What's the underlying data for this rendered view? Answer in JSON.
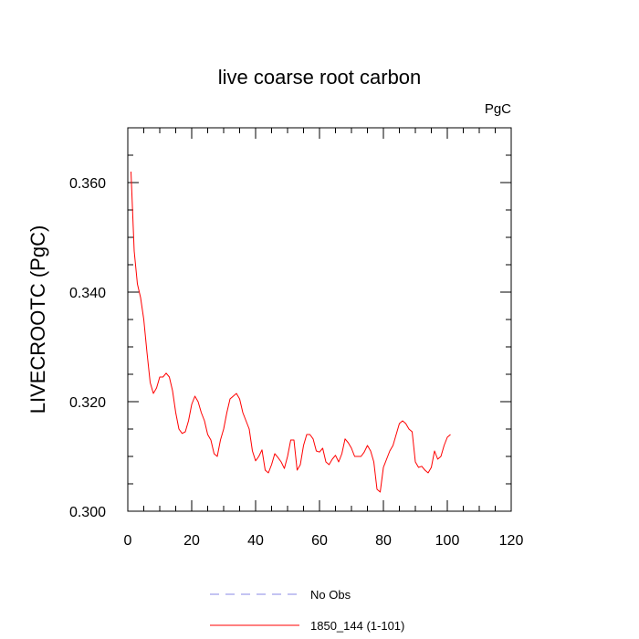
{
  "chart_data": {
    "type": "line",
    "title": "live coarse root carbon",
    "units": "PgC",
    "ylabel": "LIVECROOTC  (PgC)",
    "xlabel": "",
    "xlim": [
      0,
      120
    ],
    "ylim": [
      0.3,
      0.37
    ],
    "x_ticks": [
      0,
      20,
      40,
      60,
      80,
      100,
      120
    ],
    "x_tick_labels": [
      "0",
      "20",
      "40",
      "60",
      "80",
      "100",
      "120"
    ],
    "y_ticks": [
      0.3,
      0.32,
      0.34,
      0.36
    ],
    "y_tick_labels": [
      "0.300",
      "0.320",
      "0.340",
      "0.360"
    ],
    "grid": false,
    "legend_position": "bottom",
    "series": [
      {
        "name": "No Obs",
        "color": "#8a8ae6",
        "dash": "dashed",
        "x": [],
        "values": []
      },
      {
        "name": "1850_144 (1-101)",
        "color": "#ff0000",
        "dash": "solid",
        "x": [
          1,
          2,
          3,
          4,
          5,
          6,
          7,
          8,
          9,
          10,
          11,
          12,
          13,
          14,
          15,
          16,
          17,
          18,
          19,
          20,
          21,
          22,
          23,
          24,
          25,
          26,
          27,
          28,
          29,
          30,
          31,
          32,
          33,
          34,
          35,
          36,
          37,
          38,
          39,
          40,
          41,
          42,
          43,
          44,
          45,
          46,
          47,
          48,
          49,
          50,
          51,
          52,
          53,
          54,
          55,
          56,
          57,
          58,
          59,
          60,
          61,
          62,
          63,
          64,
          65,
          66,
          67,
          68,
          69,
          70,
          71,
          72,
          73,
          74,
          75,
          76,
          77,
          78,
          79,
          80,
          81,
          82,
          83,
          84,
          85,
          86,
          87,
          88,
          89,
          90,
          91,
          92,
          93,
          94,
          95,
          96,
          97,
          98,
          99,
          100,
          101
        ],
        "values": [
          0.362,
          0.3475,
          0.3415,
          0.339,
          0.335,
          0.329,
          0.3235,
          0.3215,
          0.3225,
          0.3245,
          0.3245,
          0.3252,
          0.3245,
          0.322,
          0.318,
          0.315,
          0.3142,
          0.3145,
          0.3165,
          0.3195,
          0.321,
          0.32,
          0.318,
          0.3165,
          0.314,
          0.313,
          0.3105,
          0.31,
          0.313,
          0.315,
          0.318,
          0.3205,
          0.321,
          0.3215,
          0.3205,
          0.318,
          0.3165,
          0.315,
          0.311,
          0.3092,
          0.31,
          0.3112,
          0.3075,
          0.307,
          0.3085,
          0.3105,
          0.3098,
          0.309,
          0.3078,
          0.31,
          0.313,
          0.313,
          0.3075,
          0.3085,
          0.312,
          0.314,
          0.314,
          0.3132,
          0.311,
          0.3108,
          0.3115,
          0.309,
          0.3085,
          0.3095,
          0.3102,
          0.309,
          0.3105,
          0.3132,
          0.3125,
          0.3115,
          0.31,
          0.31,
          0.31,
          0.3108,
          0.312,
          0.311,
          0.309,
          0.304,
          0.3035,
          0.308,
          0.3095,
          0.311,
          0.312,
          0.314,
          0.316,
          0.3165,
          0.316,
          0.315,
          0.3145,
          0.309,
          0.308,
          0.3082,
          0.3075,
          0.307,
          0.308,
          0.311,
          0.3095,
          0.31,
          0.312,
          0.3135,
          0.314
        ]
      }
    ]
  }
}
